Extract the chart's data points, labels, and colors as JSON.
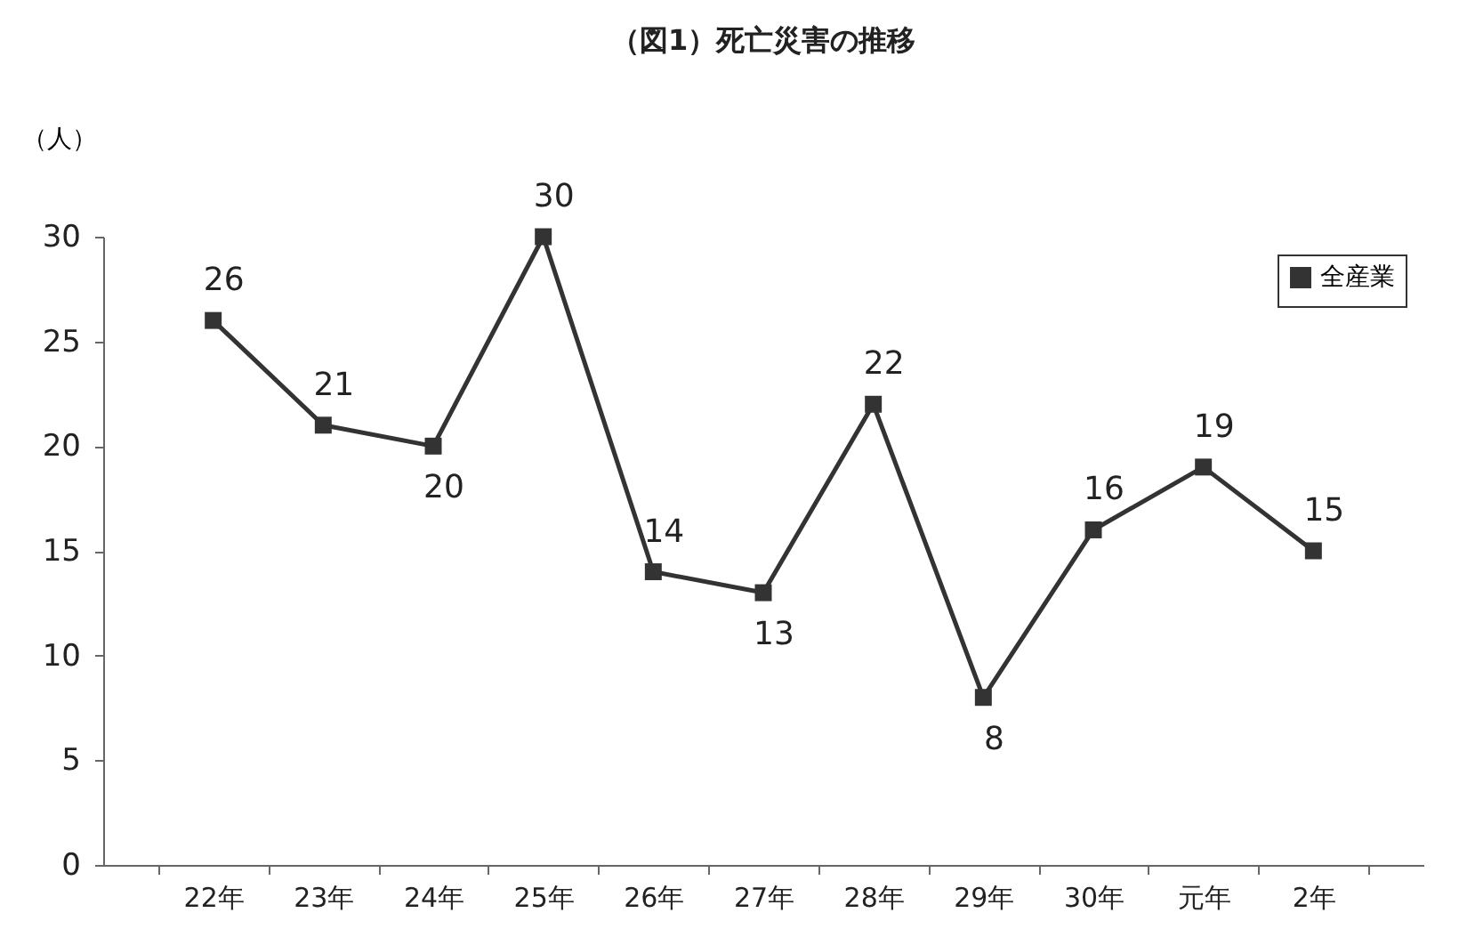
{
  "chart_data": {
    "type": "line",
    "title": "（図1）死亡災害の推移",
    "ylabel": "（人）",
    "categories": [
      "22年",
      "23年",
      "24年",
      "25年",
      "26年",
      "27年",
      "28年",
      "29年",
      "30年",
      "元年",
      "2年"
    ],
    "series": [
      {
        "name": "全産業",
        "color": "#333333",
        "values": [
          26,
          21,
          20,
          30,
          14,
          13,
          22,
          8,
          16,
          19,
          15
        ]
      }
    ],
    "ylim": [
      0,
      30
    ],
    "yticks": [
      0,
      5,
      10,
      15,
      20,
      25,
      30
    ],
    "grid": false,
    "legend": "top right",
    "marker": "square",
    "line_style": "solid",
    "data_labels": true
  }
}
